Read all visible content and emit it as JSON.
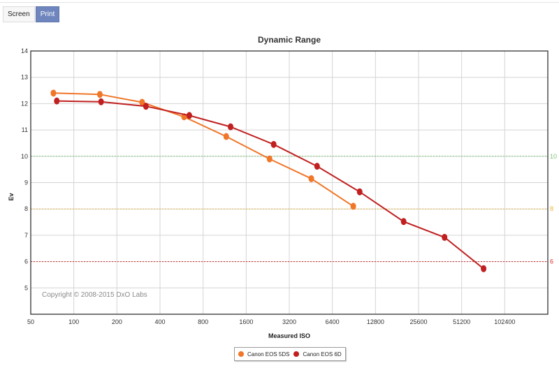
{
  "tabs": [
    {
      "label": "Screen",
      "active": false
    },
    {
      "label": "Print",
      "active": true
    }
  ],
  "chart_data": {
    "type": "line",
    "title": "Dynamic Range",
    "xlabel": "Measured ISO",
    "ylabel": "Ev",
    "ylim": [
      4,
      14
    ],
    "y_ticks": [
      5,
      6,
      7,
      8,
      9,
      10,
      11,
      12,
      13,
      14
    ],
    "x_log2_range": [
      50,
      204800
    ],
    "x_ticks": [
      50,
      100,
      200,
      400,
      800,
      1600,
      3200,
      6400,
      12800,
      25600,
      51200,
      102400
    ],
    "grid": true,
    "copyright": "Copyright © 2008-2015 DxO Labs",
    "reference_lines": [
      {
        "value": 10,
        "label": "10",
        "color": "#7cc576"
      },
      {
        "value": 8,
        "label": "8",
        "color": "#e8b53a"
      },
      {
        "value": 6,
        "label": "6",
        "color": "#d42a2a"
      }
    ],
    "legend_position": "bottom-center",
    "series": [
      {
        "name": "Canon EOS 5DS",
        "color": "#f07628",
        "x": [
          72,
          152,
          300,
          589,
          1161,
          2330,
          4561,
          8959
        ],
        "y": [
          12.4,
          12.35,
          12.05,
          11.5,
          10.75,
          9.9,
          9.15,
          8.1
        ]
      },
      {
        "name": "Canon EOS 6D",
        "color": "#c02020",
        "x": [
          76,
          155,
          319,
          641,
          1245,
          2490,
          5005,
          9930,
          20140,
          38910,
          72900
        ],
        "y": [
          12.1,
          12.07,
          11.9,
          11.55,
          11.12,
          10.45,
          9.62,
          8.65,
          7.52,
          6.92,
          5.73
        ]
      }
    ]
  }
}
